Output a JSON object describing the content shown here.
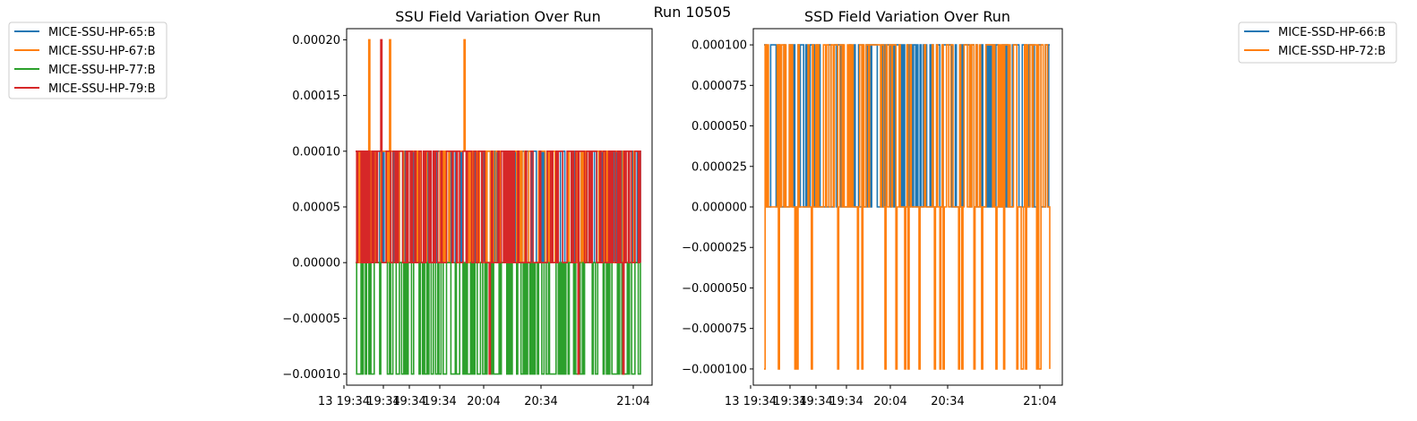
{
  "suptitle": "Run 10505",
  "chart_data": [
    {
      "type": "line",
      "title": "SSU Field Variation Over Run",
      "ylim": [
        -0.00011,
        0.00021
      ],
      "yticks": [
        -0.0001,
        -5e-05,
        0,
        5e-05,
        0.0001,
        0.00015,
        0.0002
      ],
      "ytick_labels": [
        "−0.00010",
        "−0.00005",
        "0.00000",
        "0.00005",
        "0.00010",
        "0.00015",
        "0.00020"
      ],
      "xtick_labels": [
        "13 19:34",
        "19:34",
        "19:34",
        "19:34",
        "20:04",
        "20:34",
        "21:04"
      ],
      "legend_position": "outside-upper-left",
      "series": [
        {
          "name": "MICE-SSU-HP-65:B",
          "color": "#1f77b4"
        },
        {
          "name": "MICE-SSU-HP-67:B",
          "color": "#ff7f0e"
        },
        {
          "name": "MICE-SSU-HP-77:B",
          "color": "#2ca02c"
        },
        {
          "name": "MICE-SSU-HP-79:B",
          "color": "#d62728"
        }
      ]
    },
    {
      "type": "line",
      "title": "SSD Field Variation Over Run",
      "ylim": [
        -0.00011,
        0.00011
      ],
      "yticks": [
        -0.0001,
        -7.5e-05,
        -5e-05,
        -2.5e-05,
        0,
        2.5e-05,
        5e-05,
        7.5e-05,
        0.0001
      ],
      "ytick_labels": [
        "−0.000100",
        "−0.000075",
        "−0.000050",
        "−0.000025",
        "0.000000",
        "0.000025",
        "0.000050",
        "0.000075",
        "0.000100"
      ],
      "xtick_labels": [
        "13 19:34",
        "19:34",
        "19:34",
        "19:34",
        "20:04",
        "20:34",
        "21:04"
      ],
      "legend_position": "outside-upper-right",
      "series": [
        {
          "name": "MICE-SSD-HP-66:B",
          "color": "#1f77b4"
        },
        {
          "name": "MICE-SSD-HP-72:B",
          "color": "#ff7f0e"
        }
      ]
    }
  ]
}
